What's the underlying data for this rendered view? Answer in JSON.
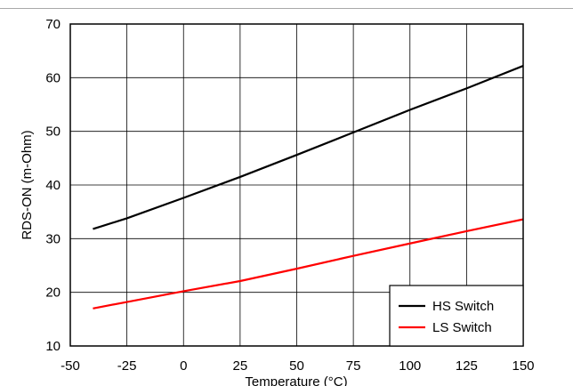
{
  "chart_data": {
    "type": "line",
    "title": "",
    "xlabel": "Temperature (°C)",
    "ylabel": "RDS-ON (m-Ohm)",
    "xlim": [
      -50,
      150
    ],
    "ylim": [
      10,
      70
    ],
    "xticks": [
      -50,
      -25,
      0,
      25,
      50,
      75,
      100,
      125,
      150
    ],
    "yticks": [
      10,
      20,
      30,
      40,
      50,
      60,
      70
    ],
    "grid": true,
    "legend_position": "bottom-right",
    "series": [
      {
        "name": "HS Switch",
        "color": "#000000",
        "x": [
          -40,
          -25,
          0,
          25,
          50,
          75,
          100,
          125,
          150
        ],
        "y": [
          31.8,
          33.8,
          37.6,
          41.5,
          45.6,
          49.8,
          54.0,
          58.0,
          62.2
        ]
      },
      {
        "name": "LS Switch",
        "color": "#ff0000",
        "x": [
          -40,
          -25,
          0,
          25,
          50,
          75,
          100,
          125,
          150
        ],
        "y": [
          17.0,
          18.2,
          20.2,
          22.1,
          24.4,
          26.8,
          29.1,
          31.4,
          33.6
        ]
      }
    ]
  }
}
